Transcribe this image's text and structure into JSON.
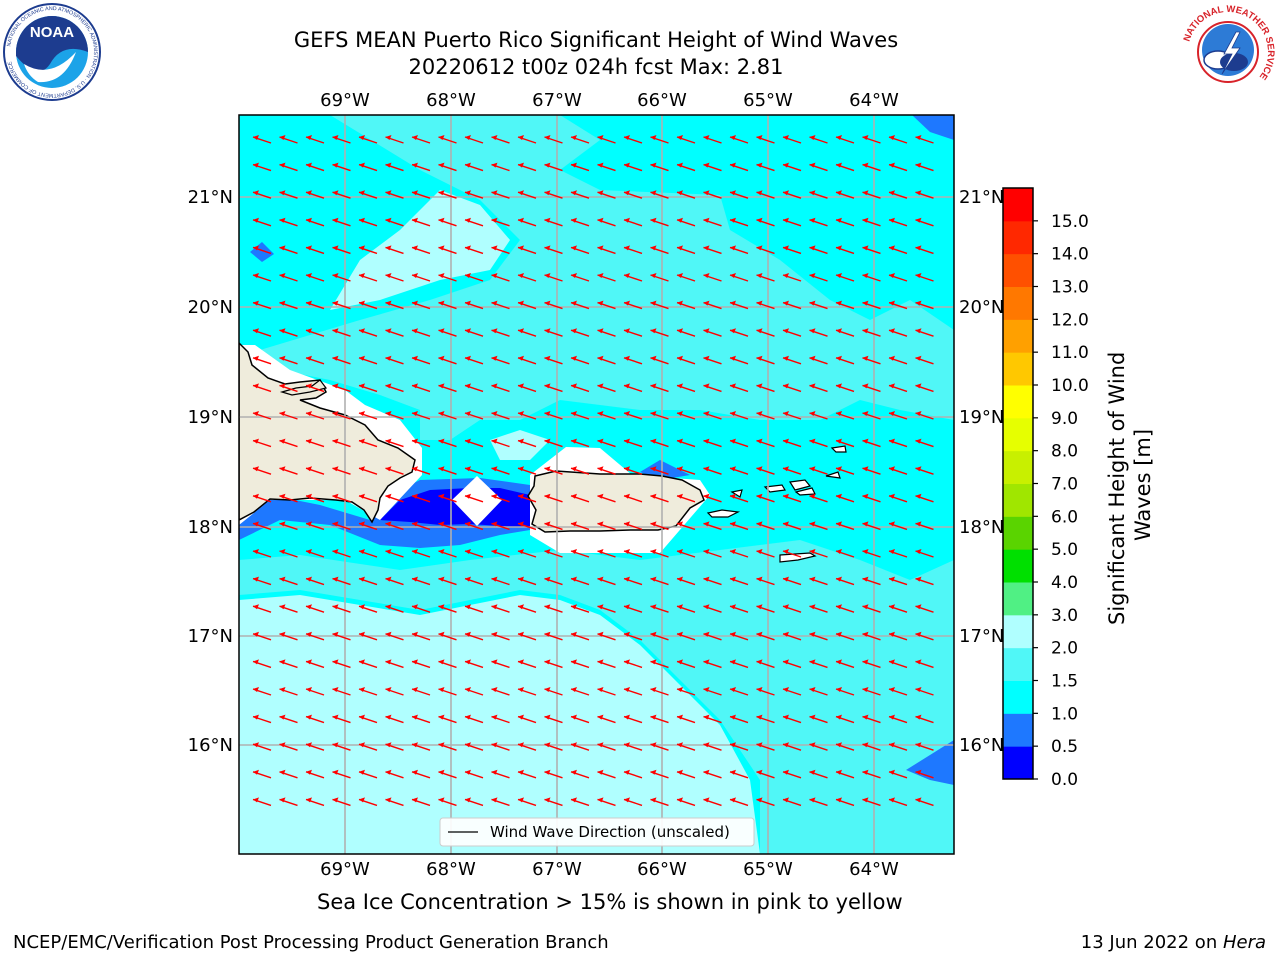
{
  "header": {
    "title_line1": "GEFS MEAN Puerto Rico Significant Height of Wind Waves",
    "title_line2": "20220612 t00z 024h fcst   Max: 2.81"
  },
  "logos": {
    "left": "noaa-logo",
    "left_text": "NOAA",
    "left_ring_text": "NATIONAL OCEANIC AND ATMOSPHERIC ADMINISTRATION · U.S. DEPARTMENT OF COMMERCE",
    "right": "national-weather-service-logo",
    "right_ring_text": "NATIONAL WEATHER SERVICE"
  },
  "map": {
    "lon_labels": [
      "69°W",
      "68°W",
      "67°W",
      "66°W",
      "65°W",
      "64°W"
    ],
    "lat_labels": [
      "21°N",
      "20°N",
      "19°N",
      "18°N",
      "17°N",
      "16°N"
    ],
    "legend_label": "Wind Wave Direction (unscaled)",
    "arrow_color": "#ff0000",
    "wind_direction": "from east-southeast (arrows point west-northwest)"
  },
  "colorbar": {
    "label": "Significant Height of Wind Waves [m]",
    "ticks": [
      "0.0",
      "0.5",
      "1.0",
      "1.5",
      "2.0",
      "3.0",
      "4.0",
      "5.0",
      "6.0",
      "7.0",
      "8.0",
      "9.0",
      "10.0",
      "11.0",
      "12.0",
      "13.0",
      "14.0",
      "15.0"
    ],
    "colors": [
      "#0000ff",
      "#1e78ff",
      "#00ffff",
      "#50f7f7",
      "#b0ffff",
      "#50f084",
      "#00e000",
      "#5ad400",
      "#a0e600",
      "#c8f000",
      "#e6ff00",
      "#ffff00",
      "#ffc800",
      "#ffa000",
      "#ff7800",
      "#ff5000",
      "#ff2800",
      "#ff0000"
    ]
  },
  "footer": {
    "sea_ice_note": "Sea Ice Concentration > 15% is shown in pink to yellow",
    "branch_credit": "NCEP/EMC/Verification Post Processing Product Generation Branch",
    "run_date_prefix": "13 Jun 2022 on ",
    "run_date_host": "Hera"
  }
}
